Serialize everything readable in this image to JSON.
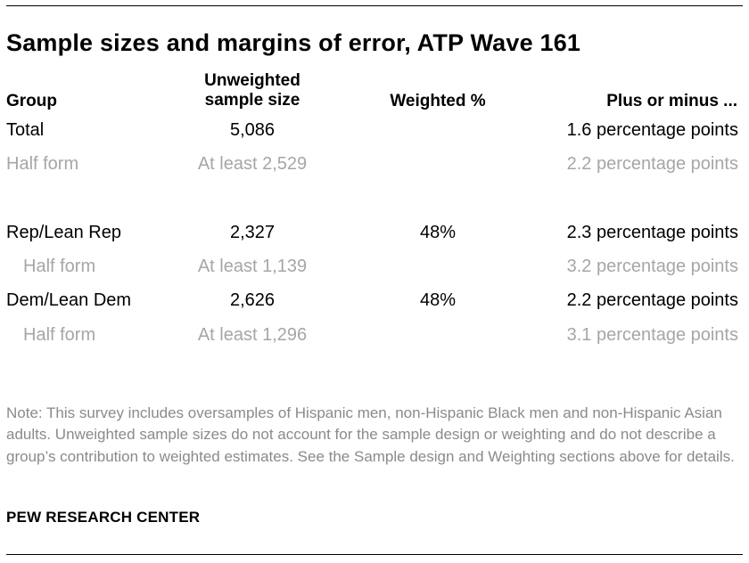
{
  "title": "Sample sizes and margins of error, ATP Wave 161",
  "headers": {
    "group": "Group",
    "sample_size_line1": "Unweighted",
    "sample_size_line2": "sample size",
    "weighted": "Weighted %",
    "moe": "Plus or minus ..."
  },
  "rows": [
    {
      "group": "Total",
      "size": "5,086",
      "weighted": "",
      "moe": "1.6 percentage points"
    },
    {
      "group": "Half form",
      "size": "At least 2,529",
      "weighted": "",
      "moe": "2.2 percentage points"
    },
    {
      "group": "Rep/Lean Rep",
      "size": "2,327",
      "weighted": "48%",
      "moe": "2.3 percentage points"
    },
    {
      "group": "Half form",
      "size": "At least 1,139",
      "weighted": "",
      "moe": "3.2 percentage points"
    },
    {
      "group": "Dem/Lean Dem",
      "size": "2,626",
      "weighted": "48%",
      "moe": "2.2 percentage points"
    },
    {
      "group": "Half form",
      "size": "At least 1,296",
      "weighted": "",
      "moe": "3.1 percentage points"
    }
  ],
  "note": "Note: This survey includes oversamples of Hispanic men, non-Hispanic Black men and non-Hispanic Asian adults. Unweighted sample sizes do not account for the sample design or weighting and do not describe a group’s contribution to weighted estimates. See the Sample design and Weighting sections above for details.",
  "source": "PEW RESEARCH CENTER",
  "colors": {
    "primary_text": "#000000",
    "sub_text": "#a6a6a6",
    "note_text": "#8a8a8a"
  }
}
